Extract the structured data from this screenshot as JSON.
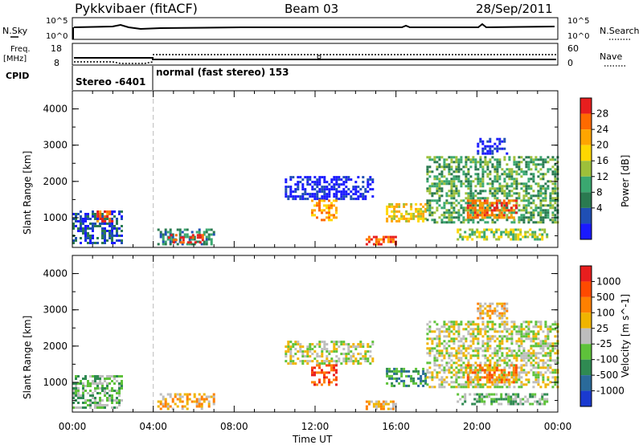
{
  "header": {
    "station": "Pykkvibaer (fitACF)",
    "beam": "Beam 03",
    "date": "28/Sep/2011"
  },
  "top_panels": {
    "nsky_label": "N.Sky",
    "nsky_ticks": [
      "10^5",
      "10^0"
    ],
    "nsearch_label": "N.Search",
    "nsearch_ticks": [
      "10^5",
      "10^0"
    ],
    "freq_label_1": "Freq.",
    "freq_label_2": "[MHz]",
    "freq_ticks": [
      "18",
      "8"
    ],
    "nave_label": "Nave",
    "nave_ticks": [
      "60",
      "0"
    ],
    "cpid_label": "CPID",
    "cpid_segments": [
      {
        "text": "Stereo -6401",
        "start_hour": 0,
        "end_hour": 4
      },
      {
        "text": "normal (fast stereo) 153",
        "start_hour": 4,
        "end_hour": 24
      }
    ]
  },
  "colorbars": {
    "power": {
      "label": "Power [dB]",
      "ticks": [
        "28",
        "24",
        "20",
        "16",
        "12",
        "8",
        "4"
      ],
      "colors": [
        "#1a1aff",
        "#1f4fb4",
        "#2a7a50",
        "#3aa870",
        "#9dc03a",
        "#ffd700",
        "#ffa500",
        "#ff6a00",
        "#e81e1e"
      ]
    },
    "velocity": {
      "label": "Velocity [m s^-1]",
      "ticks": [
        "1000",
        "500",
        "100",
        "25",
        "-25",
        "-100",
        "-500",
        "-1000"
      ],
      "colors": [
        "#1a3ad0",
        "#2a6a9a",
        "#2f8a52",
        "#5ec23a",
        "#bdbdbd",
        "#f0b400",
        "#ff8000",
        "#ff4a00",
        "#e81e1e"
      ]
    }
  },
  "chart_data": [
    {
      "type": "heatmap",
      "title": "",
      "xlabel": "Time UT",
      "ylabel": "Slant Range [km]",
      "xlim": [
        0,
        24
      ],
      "ylim": [
        180,
        4500
      ],
      "x_ticks": [
        "00:00",
        "04:00",
        "08:00",
        "12:00",
        "16:00",
        "20:00",
        "00:00"
      ],
      "y_ticks": [
        "1000",
        "2000",
        "3000",
        "4000"
      ],
      "colorbar": "power",
      "regions": [
        {
          "t0": 0.0,
          "t1": 2.5,
          "r0": 300,
          "r1": 1200,
          "level": 1
        },
        {
          "t0": 1.2,
          "t1": 2.0,
          "r0": 900,
          "r1": 1200,
          "level": 7
        },
        {
          "t0": 4.2,
          "t1": 7.0,
          "r0": 250,
          "r1": 700,
          "level": 2
        },
        {
          "t0": 4.6,
          "t1": 6.4,
          "r0": 300,
          "r1": 550,
          "level": 8
        },
        {
          "t0": 10.5,
          "t1": 14.8,
          "r0": 1550,
          "r1": 2150,
          "level": 0
        },
        {
          "t0": 11.8,
          "t1": 13.0,
          "r0": 950,
          "r1": 1500,
          "level": 6
        },
        {
          "t0": 14.5,
          "t1": 16.0,
          "r0": 300,
          "r1": 500,
          "level": 7
        },
        {
          "t0": 15.5,
          "t1": 17.5,
          "r0": 900,
          "r1": 1400,
          "level": 5
        },
        {
          "t0": 17.5,
          "t1": 24.0,
          "r0": 900,
          "r1": 2700,
          "level": 3
        },
        {
          "t0": 19.5,
          "t1": 22.0,
          "r0": 1000,
          "r1": 1500,
          "level": 7
        },
        {
          "t0": 19.0,
          "t1": 23.5,
          "r0": 400,
          "r1": 700,
          "level": 4
        },
        {
          "t0": 20.0,
          "t1": 21.5,
          "r0": 2800,
          "r1": 3200,
          "level": 0
        }
      ]
    },
    {
      "type": "heatmap",
      "title": "",
      "xlabel": "Time UT",
      "ylabel": "Slant Range [km]",
      "xlim": [
        0,
        24
      ],
      "ylim": [
        180,
        4500
      ],
      "x_ticks": [
        "00:00",
        "04:00",
        "08:00",
        "12:00",
        "16:00",
        "20:00",
        "00:00"
      ],
      "y_ticks": [
        "1000",
        "2000",
        "3000",
        "4000"
      ],
      "colorbar": "velocity",
      "regions": [
        {
          "t0": 0.0,
          "t1": 2.5,
          "r0": 300,
          "r1": 1200,
          "level": 3
        },
        {
          "t0": 4.2,
          "t1": 7.0,
          "r0": 250,
          "r1": 700,
          "level": 5
        },
        {
          "t0": 10.5,
          "t1": 14.8,
          "r0": 1550,
          "r1": 2150,
          "level": 4
        },
        {
          "t0": 11.8,
          "t1": 13.0,
          "r0": 950,
          "r1": 1500,
          "level": 7
        },
        {
          "t0": 14.5,
          "t1": 16.0,
          "r0": 300,
          "r1": 500,
          "level": 5
        },
        {
          "t0": 15.5,
          "t1": 17.5,
          "r0": 900,
          "r1": 1400,
          "level": 2
        },
        {
          "t0": 17.5,
          "t1": 24.0,
          "r0": 900,
          "r1": 2700,
          "level": 4
        },
        {
          "t0": 19.5,
          "t1": 22.0,
          "r0": 1000,
          "r1": 1500,
          "level": 6
        },
        {
          "t0": 19.0,
          "t1": 23.5,
          "r0": 400,
          "r1": 700,
          "level": 3
        },
        {
          "t0": 20.0,
          "t1": 21.5,
          "r0": 2800,
          "r1": 3200,
          "level": 5
        }
      ]
    }
  ]
}
